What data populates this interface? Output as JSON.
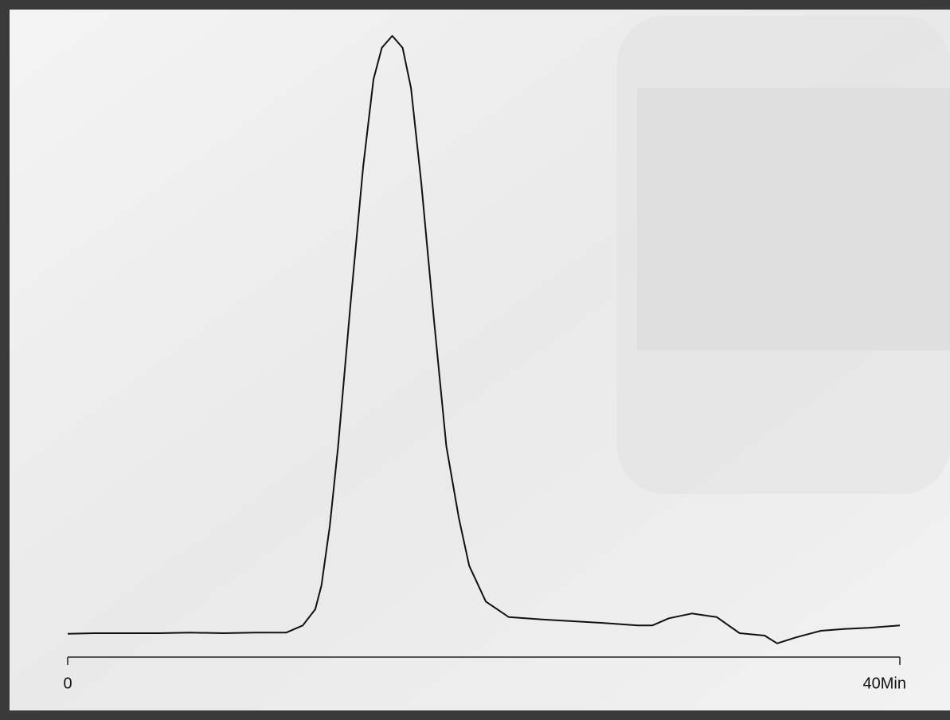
{
  "chart_data": {
    "type": "line",
    "color": "#111111",
    "x": [
      0,
      1.3,
      2.9,
      4.4,
      5.9,
      7.5,
      9.0,
      10.5,
      11.3,
      11.9,
      12.2,
      12.6,
      13.0,
      13.6,
      14.2,
      14.7,
      15.1,
      15.6,
      16.1,
      16.5,
      17.0,
      17.6,
      18.2,
      18.8,
      19.3,
      20.1,
      21.2,
      22.8,
      24.3,
      25.8,
      27.4,
      28.1,
      28.9,
      30.0,
      31.2,
      32.3,
      33.5,
      34.1,
      35.0,
      36.2,
      37.3,
      38.5,
      40
    ],
    "values": [
      -0.1,
      0,
      0,
      0,
      0.1,
      0,
      0.1,
      0.1,
      1.3,
      4,
      8,
      18,
      31.3,
      55.3,
      78,
      92.7,
      98,
      100,
      98,
      91.3,
      75.3,
      52.7,
      31.3,
      19.3,
      11.3,
      5.3,
      2.7,
      2.3,
      2,
      1.7,
      1.3,
      1.3,
      2.5,
      3.3,
      2.7,
      0,
      -0.4,
      -1.7,
      -0.7,
      0.4,
      0.7,
      0.9,
      1.3
    ],
    "xlim": [
      0,
      40
    ],
    "xticks": [
      0,
      {
        "value": 40,
        "label": "40Min"
      }
    ],
    "ylim": [
      -2,
      100
    ]
  }
}
